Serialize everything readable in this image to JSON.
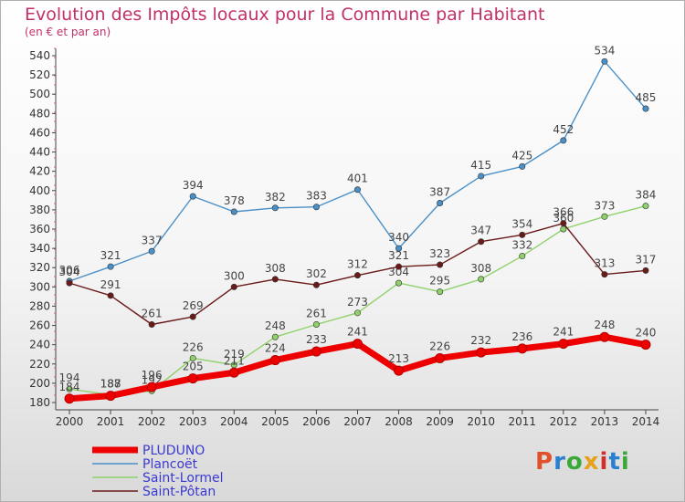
{
  "header": {
    "title": "Evolution des Impôts locaux pour la Commune par Habitant",
    "subtitle": "(en € et par an)"
  },
  "logo": {
    "text": "Proxiti",
    "colors": [
      "#e0502a",
      "#2a7fd0",
      "#3aa93a",
      "#e6a21a",
      "#d0302a",
      "#2a7fd0",
      "#3aa93a"
    ]
  },
  "chart_data": {
    "type": "line",
    "categories": [
      "2000",
      "2001",
      "2002",
      "2003",
      "2004",
      "2005",
      "2006",
      "2007",
      "2008",
      "2009",
      "2010",
      "2011",
      "2012",
      "2013",
      "2014"
    ],
    "ylim": [
      180,
      540
    ],
    "yticks": [
      180,
      200,
      220,
      240,
      260,
      280,
      300,
      320,
      340,
      360,
      380,
      400,
      420,
      440,
      460,
      480,
      500,
      520,
      540
    ],
    "legend_position": "bottom-left",
    "series": [
      {
        "name": "Plancoët",
        "color": "#4a90c8",
        "values": [
          306,
          321,
          337,
          394,
          378,
          382,
          383,
          401,
          340,
          387,
          415,
          425,
          452,
          534,
          485
        ]
      },
      {
        "name": "Saint-Lormel",
        "color": "#8fd16a",
        "values": [
          194,
          188,
          192,
          226,
          219,
          248,
          261,
          273,
          304,
          295,
          308,
          332,
          360,
          373,
          384
        ]
      },
      {
        "name": "Saint-Pôtan",
        "color": "#6b1a1a",
        "values": [
          304,
          291,
          261,
          269,
          300,
          308,
          302,
          312,
          321,
          323,
          347,
          354,
          366,
          313,
          317
        ]
      },
      {
        "name": "PLUDUNO",
        "color": "#ee0000",
        "values": [
          184,
          187,
          196,
          205,
          211,
          224,
          233,
          241,
          213,
          226,
          232,
          236,
          241,
          248,
          240
        ]
      }
    ]
  }
}
